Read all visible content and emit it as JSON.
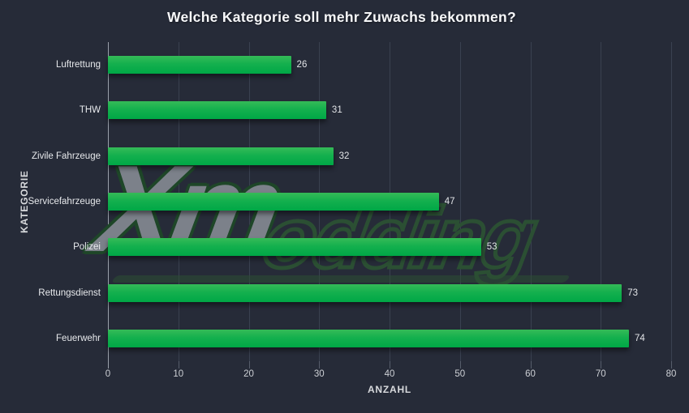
{
  "figure": {
    "background_color": "#262b38",
    "gridline_color": "#3a4150",
    "axis_line_color": "#9aa0aa"
  },
  "watermark": {
    "part1": "Xm",
    "part2": "odding",
    "gray_color": "#7c818a",
    "green_color": "#2b4f33"
  },
  "chart_data": {
    "type": "bar",
    "orientation": "horizontal",
    "title": "Welche Kategorie soll mehr Zuwachs bekommen?",
    "xlabel": "ANZAHL",
    "ylabel": "KATEGORIE",
    "categories": [
      "Luftrettung",
      "THW",
      "Zivile Fahrzeuge",
      "Servicefahrzeuge",
      "Polizei",
      "Rettungsdienst",
      "Feuerwehr"
    ],
    "values": [
      26,
      31,
      32,
      47,
      53,
      73,
      74
    ],
    "xlim": [
      0,
      80
    ],
    "xticks": [
      0,
      10,
      20,
      30,
      40,
      50,
      60,
      70,
      80
    ],
    "grid": true,
    "legend": false,
    "bar_color_top": "#35bb58",
    "bar_color_bottom": "#00a746",
    "label_color": "#e7e9ec"
  }
}
